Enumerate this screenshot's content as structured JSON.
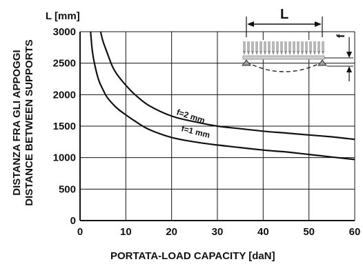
{
  "chart_data": {
    "type": "line",
    "ylabel_units": "L [mm]",
    "ylabel_line1": "DISTANZA FRA GLI APPOGGI",
    "ylabel_line2": "DISTANCE BETWEEN SUPPORTS",
    "xlabel": "PORTATA-LOAD  CAPACITY  [daN]",
    "xlim": [
      0,
      60
    ],
    "ylim": [
      0,
      3000
    ],
    "x_ticks": [
      0,
      10,
      20,
      30,
      40,
      50,
      60
    ],
    "y_ticks": [
      0,
      500,
      1000,
      1500,
      2000,
      2500,
      3000
    ],
    "grid": true,
    "series": [
      {
        "name": "f=2 mm",
        "points": [
          [
            4.5,
            3000
          ],
          [
            5,
            2850
          ],
          [
            6,
            2650
          ],
          [
            7,
            2460
          ],
          [
            8,
            2330
          ],
          [
            10,
            2150
          ],
          [
            12,
            2000
          ],
          [
            15,
            1830
          ],
          [
            20,
            1660
          ],
          [
            25,
            1570
          ],
          [
            30,
            1500
          ],
          [
            35,
            1460
          ],
          [
            40,
            1420
          ],
          [
            45,
            1390
          ],
          [
            50,
            1360
          ],
          [
            55,
            1330
          ],
          [
            60,
            1290
          ]
        ]
      },
      {
        "name": "f=1 mm",
        "points": [
          [
            2.3,
            3000
          ],
          [
            2.6,
            2750
          ],
          [
            3,
            2550
          ],
          [
            4,
            2250
          ],
          [
            5,
            2080
          ],
          [
            6,
            1950
          ],
          [
            8,
            1790
          ],
          [
            10,
            1680
          ],
          [
            12,
            1580
          ],
          [
            15,
            1450
          ],
          [
            20,
            1320
          ],
          [
            25,
            1250
          ],
          [
            30,
            1200
          ],
          [
            35,
            1160
          ],
          [
            40,
            1120
          ],
          [
            45,
            1090
          ],
          [
            50,
            1050
          ],
          [
            55,
            1010
          ],
          [
            60,
            970
          ]
        ]
      }
    ]
  },
  "diagram": {
    "span_label": "L",
    "deflection_label": "f"
  }
}
